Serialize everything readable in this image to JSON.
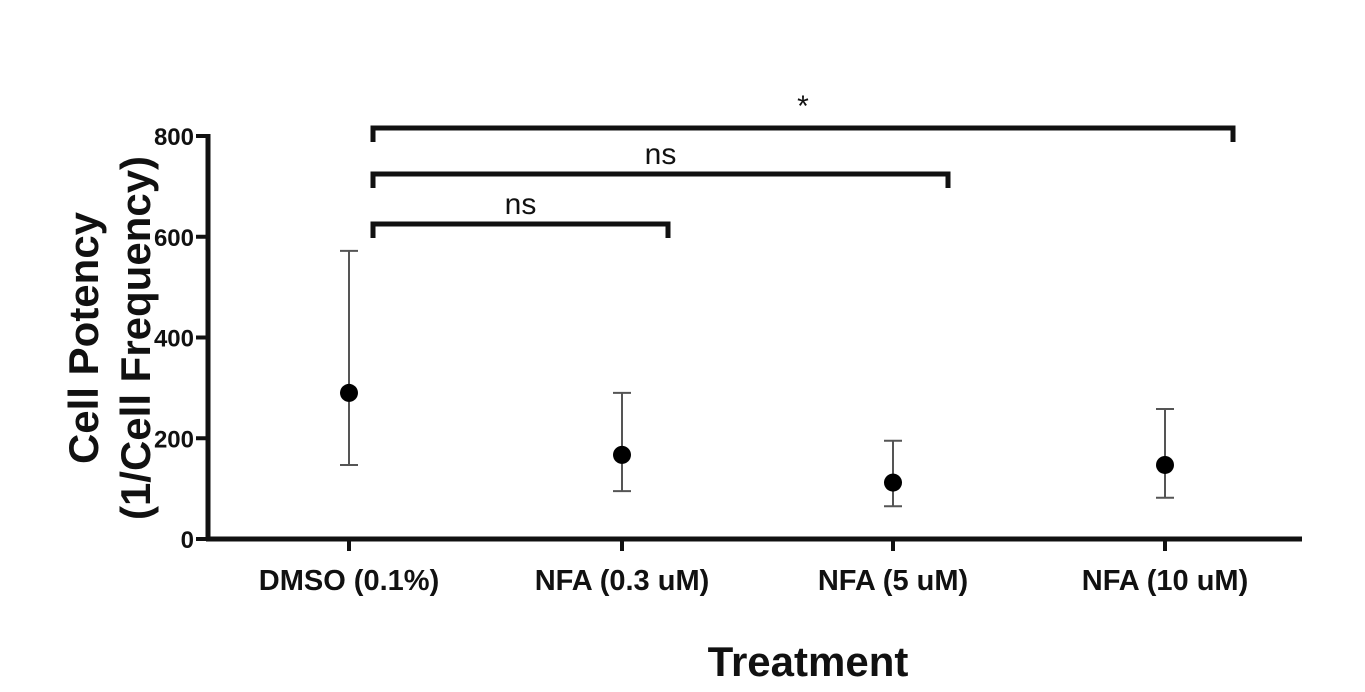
{
  "chart_data": {
    "type": "scatter",
    "title": "",
    "xlabel": "Treatment",
    "ylabel_line1": "Cell Potency",
    "ylabel_line2": "(1/Cell Frequency)",
    "ylim": [
      0,
      800
    ],
    "yticks": [
      "0",
      "200",
      "400",
      "600",
      "800"
    ],
    "ytick_values": [
      0,
      200,
      400,
      600,
      800
    ],
    "categories": [
      "DMSO (0.1%)",
      "NFA (0.3 uM)",
      "NFA (5 uM)",
      "NFA (10 uM)"
    ],
    "values": [
      290,
      167,
      112,
      147
    ],
    "error_low": [
      147,
      95,
      65,
      82
    ],
    "error_high": [
      572,
      290,
      195,
      258
    ],
    "grid": false,
    "legend": "none",
    "marker_color": "#000000",
    "errorbar_color": "#555555",
    "significance": [
      {
        "from": 0,
        "to": 1,
        "label": "ns"
      },
      {
        "from": 0,
        "to": 2,
        "label": "ns"
      },
      {
        "from": 0,
        "to": 3,
        "label": "*"
      }
    ]
  }
}
